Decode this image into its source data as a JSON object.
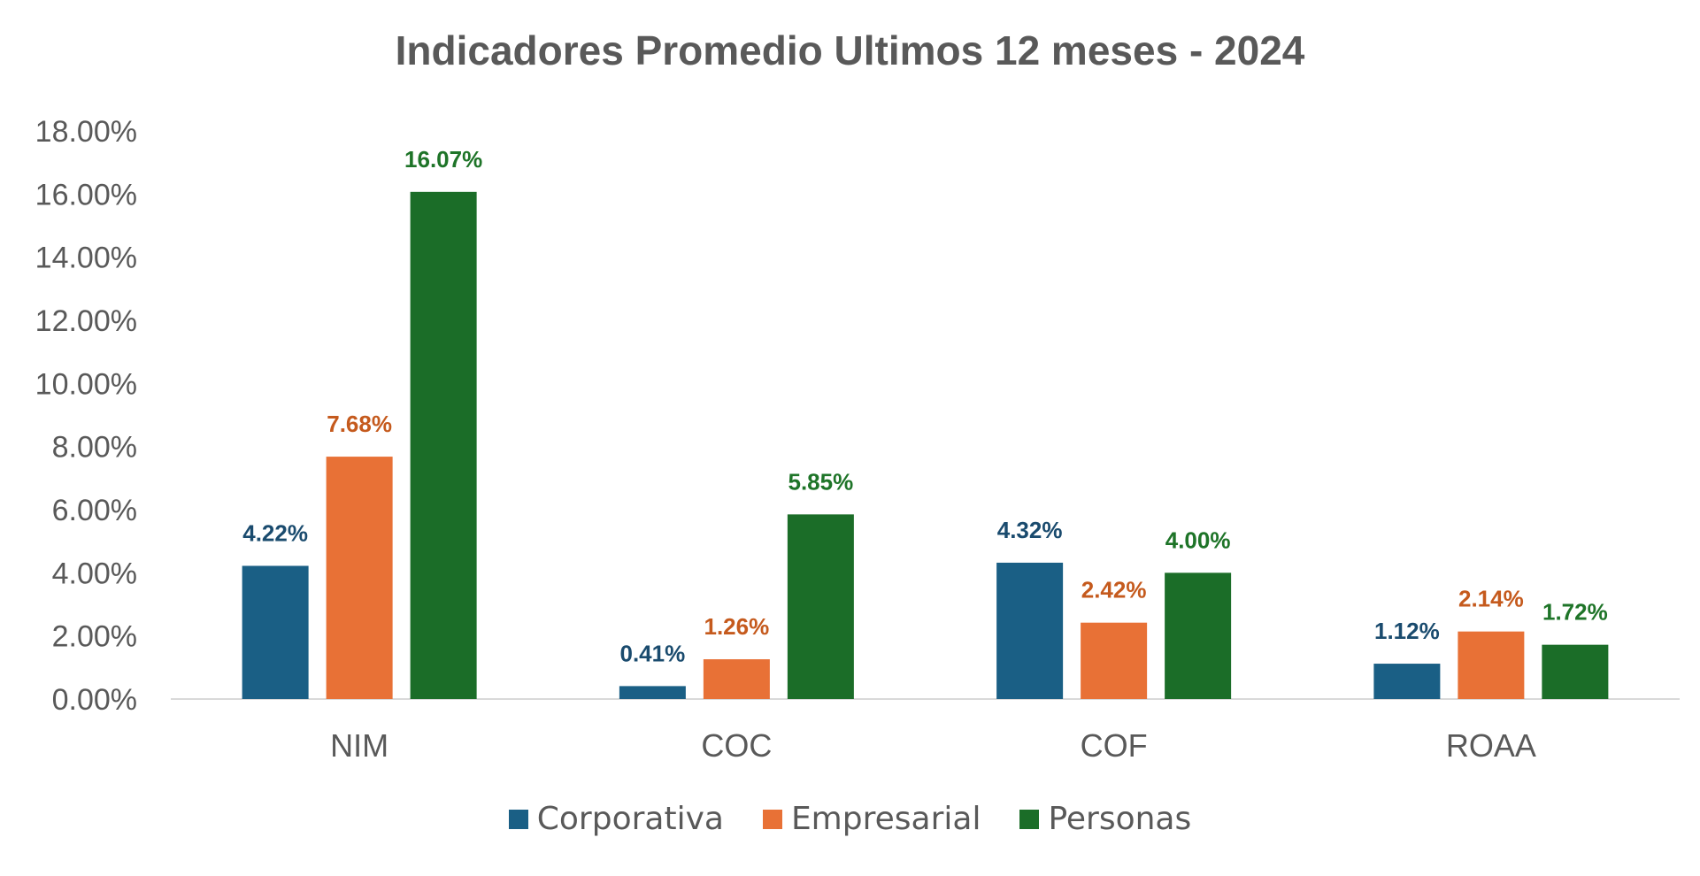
{
  "chart_data": {
    "type": "bar",
    "title": "Indicadores Promedio Ultimos 12 meses - 2024",
    "categories": [
      "NIM",
      "COC",
      "COF",
      "ROAA"
    ],
    "series": [
      {
        "name": "Corporativa",
        "color": "#1a5f85",
        "label_color": "#1a4b6e",
        "values": [
          4.22,
          0.41,
          4.32,
          1.12
        ],
        "labels": [
          "4.22%",
          "0.41%",
          "4.32%",
          "1.12%"
        ]
      },
      {
        "name": "Empresarial",
        "color": "#e87136",
        "label_color": "#c55a1d",
        "values": [
          7.68,
          1.26,
          2.42,
          2.14
        ],
        "labels": [
          "7.68%",
          "1.26%",
          "2.42%",
          "2.14%"
        ]
      },
      {
        "name": "Personas",
        "color": "#1b6d28",
        "label_color": "#1e7428",
        "values": [
          16.07,
          5.85,
          4.0,
          1.72
        ],
        "labels": [
          "16.07%",
          "5.85%",
          "4.00%",
          "1.72%"
        ]
      }
    ],
    "ylim": [
      0,
      18
    ],
    "yticks": [
      "0.00%",
      "2.00%",
      "4.00%",
      "6.00%",
      "8.00%",
      "10.00%",
      "12.00%",
      "14.00%",
      "16.00%",
      "18.00%"
    ],
    "grid": false,
    "legend": "bottom"
  }
}
